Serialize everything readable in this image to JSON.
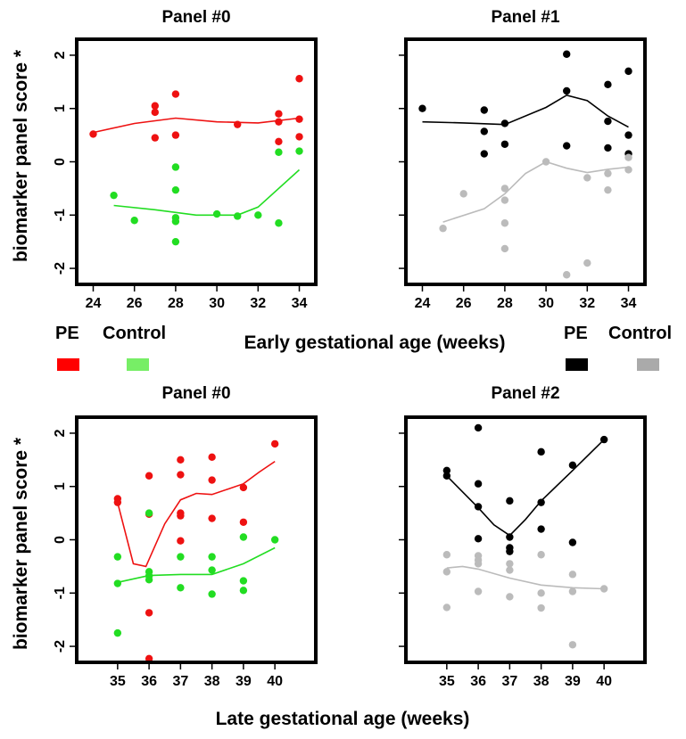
{
  "figure": {
    "ylabel_top": "biomarker panel score *",
    "ylabel_bottom": "biomarker panel score *",
    "xlabel_early": "Early gestational age (weeks)",
    "xlabel_late": "Late gestational age (weeks)"
  },
  "legends": [
    {
      "pe_label": "PE",
      "control_label": "Control",
      "pe_color": "#ff0000",
      "control_color": "#77ee66"
    },
    {
      "pe_label": "PE",
      "control_label": "Control",
      "pe_color": "#000000",
      "control_color": "#aaaaaa"
    }
  ],
  "colors": {
    "pe_red": "#ee1111",
    "control_green": "#22dd22",
    "pe_black": "#000000",
    "control_gray": "#bbbbbb"
  },
  "chart_data": [
    {
      "type": "scatter",
      "title": "Panel #0",
      "ylim": [
        -2.3,
        2.3
      ],
      "y_ticks": [
        -2,
        -1,
        0,
        1,
        2
      ],
      "show_y_tick_labels": true,
      "xlim": [
        23.2,
        34.8
      ],
      "x_ticks": [
        "24",
        "26",
        "28",
        "30",
        "32",
        "34"
      ],
      "x_tick_values": [
        24,
        26,
        28,
        30,
        32,
        34
      ],
      "series": [
        {
          "name": "PE",
          "color": "#ee1111",
          "points": [
            [
              24,
              0.52
            ],
            [
              27,
              1.05
            ],
            [
              27,
              0.93
            ],
            [
              27,
              0.45
            ],
            [
              28,
              1.27
            ],
            [
              28,
              0.5
            ],
            [
              31,
              0.7
            ],
            [
              33,
              0.9
            ],
            [
              33,
              0.75
            ],
            [
              33,
              0.38
            ],
            [
              34,
              1.56
            ],
            [
              34,
              0.8
            ],
            [
              34,
              0.47
            ]
          ],
          "smooth": [
            [
              24,
              0.55
            ],
            [
              26,
              0.72
            ],
            [
              28,
              0.82
            ],
            [
              30,
              0.75
            ],
            [
              32,
              0.73
            ],
            [
              34,
              0.82
            ]
          ]
        },
        {
          "name": "Control",
          "color": "#22dd22",
          "points": [
            [
              25,
              -0.63
            ],
            [
              26,
              -1.1
            ],
            [
              28,
              -0.1
            ],
            [
              28,
              -0.53
            ],
            [
              28,
              -1.05
            ],
            [
              28,
              -1.12
            ],
            [
              28,
              -1.5
            ],
            [
              30,
              -0.98
            ],
            [
              31,
              -1.02
            ],
            [
              32,
              -1.0
            ],
            [
              33,
              -1.15
            ],
            [
              33,
              0.18
            ],
            [
              34,
              0.2
            ]
          ],
          "smooth": [
            [
              25,
              -0.82
            ],
            [
              27,
              -0.9
            ],
            [
              29,
              -1.0
            ],
            [
              31,
              -1.0
            ],
            [
              32,
              -0.85
            ],
            [
              34,
              -0.15
            ]
          ]
        }
      ]
    },
    {
      "type": "scatter",
      "title": "Panel #1",
      "ylim": [
        -2.3,
        2.3
      ],
      "y_ticks": [
        -2,
        -1,
        0,
        1,
        2
      ],
      "show_y_tick_labels": false,
      "xlim": [
        23.2,
        34.8
      ],
      "x_ticks": [
        "24",
        "26",
        "28",
        "30",
        "32",
        "34"
      ],
      "x_tick_values": [
        24,
        26,
        28,
        30,
        32,
        34
      ],
      "series": [
        {
          "name": "PE",
          "color": "#000000",
          "points": [
            [
              24,
              1.0
            ],
            [
              27,
              0.97
            ],
            [
              27,
              0.57
            ],
            [
              27,
              0.15
            ],
            [
              28,
              0.72
            ],
            [
              28,
              0.33
            ],
            [
              31,
              2.02
            ],
            [
              31,
              1.33
            ],
            [
              31,
              0.3
            ],
            [
              33,
              1.45
            ],
            [
              33,
              0.76
            ],
            [
              33,
              0.26
            ],
            [
              34,
              1.7
            ],
            [
              34,
              0.5
            ],
            [
              34,
              0.15
            ]
          ],
          "smooth": [
            [
              24,
              0.75
            ],
            [
              26,
              0.73
            ],
            [
              28,
              0.7
            ],
            [
              30,
              1.02
            ],
            [
              31,
              1.25
            ],
            [
              32,
              1.15
            ],
            [
              33,
              0.86
            ],
            [
              34,
              0.65
            ]
          ]
        },
        {
          "name": "Control",
          "color": "#bbbbbb",
          "points": [
            [
              25,
              -1.25
            ],
            [
              26,
              -0.6
            ],
            [
              28,
              -0.5
            ],
            [
              28,
              -0.72
            ],
            [
              28,
              -1.15
            ],
            [
              28,
              -1.63
            ],
            [
              30,
              0.0
            ],
            [
              31,
              -2.12
            ],
            [
              32,
              -0.3
            ],
            [
              32,
              -1.9
            ],
            [
              33,
              -0.22
            ],
            [
              33,
              -0.53
            ],
            [
              34,
              0.08
            ],
            [
              34,
              -0.15
            ]
          ],
          "smooth": [
            [
              25,
              -1.13
            ],
            [
              27,
              -0.88
            ],
            [
              28,
              -0.6
            ],
            [
              29,
              -0.22
            ],
            [
              30,
              0.0
            ],
            [
              31,
              -0.12
            ],
            [
              32,
              -0.2
            ],
            [
              33,
              -0.14
            ],
            [
              34,
              -0.1
            ]
          ]
        }
      ]
    },
    {
      "type": "scatter",
      "title": "Panel #0",
      "ylim": [
        -2.3,
        2.3
      ],
      "y_ticks": [
        -2,
        -1,
        0,
        1,
        2
      ],
      "show_y_tick_labels": true,
      "xlim": [
        33.7,
        41.3
      ],
      "x_ticks": [
        "35",
        "36",
        "37",
        "38",
        "39",
        "40"
      ],
      "x_tick_values": [
        35,
        36,
        37,
        38,
        39,
        40
      ],
      "series": [
        {
          "name": "PE",
          "color": "#ee1111",
          "points": [
            [
              35,
              0.77
            ],
            [
              35,
              0.7
            ],
            [
              36,
              1.2
            ],
            [
              36,
              0.48
            ],
            [
              36,
              -1.37
            ],
            [
              36,
              -2.23
            ],
            [
              37,
              1.5
            ],
            [
              37,
              1.22
            ],
            [
              37,
              0.5
            ],
            [
              37,
              0.45
            ],
            [
              37,
              -0.02
            ],
            [
              38,
              1.55
            ],
            [
              38,
              1.12
            ],
            [
              38,
              0.4
            ],
            [
              39,
              0.98
            ],
            [
              39,
              0.33
            ],
            [
              40,
              1.8
            ]
          ],
          "smooth": [
            [
              35,
              0.7
            ],
            [
              35.5,
              -0.45
            ],
            [
              35.9,
              -0.5
            ],
            [
              36.5,
              0.3
            ],
            [
              37,
              0.75
            ],
            [
              37.5,
              0.87
            ],
            [
              38,
              0.85
            ],
            [
              38.5,
              0.95
            ],
            [
              39,
              1.05
            ],
            [
              39.5,
              1.27
            ],
            [
              40,
              1.47
            ]
          ]
        },
        {
          "name": "Control",
          "color": "#22dd22",
          "points": [
            [
              35,
              -0.32
            ],
            [
              35,
              -0.82
            ],
            [
              35,
              -1.75
            ],
            [
              36,
              0.5
            ],
            [
              36,
              -0.6
            ],
            [
              36,
              -0.68
            ],
            [
              36,
              -0.75
            ],
            [
              37,
              -0.32
            ],
            [
              37,
              -0.9
            ],
            [
              38,
              -0.32
            ],
            [
              38,
              -0.57
            ],
            [
              38,
              -1.02
            ],
            [
              39,
              0.05
            ],
            [
              39,
              -0.77
            ],
            [
              39,
              -0.95
            ],
            [
              40,
              0.0
            ]
          ],
          "smooth": [
            [
              35,
              -0.8
            ],
            [
              36,
              -0.67
            ],
            [
              37,
              -0.65
            ],
            [
              38,
              -0.65
            ],
            [
              39,
              -0.45
            ],
            [
              40,
              -0.15
            ]
          ]
        }
      ]
    },
    {
      "type": "scatter",
      "title": "Panel #2",
      "ylim": [
        -2.3,
        2.3
      ],
      "y_ticks": [
        -2,
        -1,
        0,
        1,
        2
      ],
      "show_y_tick_labels": false,
      "xlim": [
        33.7,
        41.3
      ],
      "x_ticks": [
        "35",
        "36",
        "37",
        "38",
        "39",
        "40"
      ],
      "x_tick_values": [
        35,
        36,
        37,
        38,
        39,
        40
      ],
      "series": [
        {
          "name": "PE",
          "color": "#000000",
          "points": [
            [
              35,
              1.3
            ],
            [
              35,
              1.2
            ],
            [
              36,
              2.1
            ],
            [
              36,
              1.05
            ],
            [
              36,
              0.62
            ],
            [
              36,
              0.02
            ],
            [
              37,
              0.73
            ],
            [
              37,
              0.05
            ],
            [
              37,
              -0.15
            ],
            [
              37,
              -0.22
            ],
            [
              38,
              1.65
            ],
            [
              38,
              0.7
            ],
            [
              38,
              0.2
            ],
            [
              39,
              1.4
            ],
            [
              39,
              -0.05
            ],
            [
              40,
              1.88
            ]
          ],
          "smooth": [
            [
              35,
              1.2
            ],
            [
              36,
              0.6
            ],
            [
              36.5,
              0.28
            ],
            [
              37,
              0.08
            ],
            [
              37.5,
              0.38
            ],
            [
              38,
              0.73
            ],
            [
              39,
              1.3
            ],
            [
              40,
              1.88
            ]
          ]
        },
        {
          "name": "Control",
          "color": "#bbbbbb",
          "points": [
            [
              35,
              -0.28
            ],
            [
              35,
              -0.6
            ],
            [
              35,
              -1.27
            ],
            [
              36,
              -0.3
            ],
            [
              36,
              -0.38
            ],
            [
              36,
              -0.45
            ],
            [
              36,
              -0.97
            ],
            [
              37,
              -0.45
            ],
            [
              37,
              -0.57
            ],
            [
              37,
              -1.07
            ],
            [
              38,
              -0.28
            ],
            [
              38,
              -1.0
            ],
            [
              38,
              -1.28
            ],
            [
              39,
              -0.65
            ],
            [
              39,
              -0.97
            ],
            [
              39,
              -1.97
            ],
            [
              40,
              -0.92
            ]
          ],
          "smooth": [
            [
              35,
              -0.53
            ],
            [
              35.5,
              -0.5
            ],
            [
              36,
              -0.55
            ],
            [
              37,
              -0.72
            ],
            [
              38,
              -0.85
            ],
            [
              39,
              -0.9
            ],
            [
              40,
              -0.92
            ]
          ]
        }
      ]
    }
  ]
}
